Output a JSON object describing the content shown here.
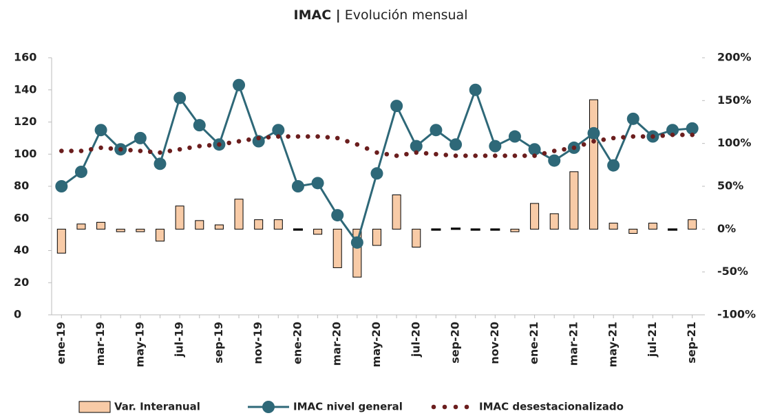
{
  "chart_data": {
    "type": "combo",
    "title_bold": "IMAC |",
    "title": "Evolución mensual",
    "categories": [
      "ene-19",
      null,
      "mar-19",
      null,
      "may-19",
      null,
      "jul-19",
      null,
      "sep-19",
      null,
      "nov-19",
      null,
      "ene-20",
      null,
      "mar-20",
      null,
      "may-20",
      null,
      "jul-20",
      null,
      "sep-20",
      null,
      "nov-20",
      null,
      "ene-21",
      null,
      "mar-21",
      null,
      "may-21",
      null,
      "jul-21",
      null,
      "sep-21"
    ],
    "series": [
      {
        "name": "Var. Interanual",
        "type": "bar",
        "axis": "y2",
        "color": "#f8cba7",
        "values": [
          -28,
          6,
          8,
          -3,
          -3,
          -14,
          27,
          10,
          5,
          35,
          11,
          11,
          -1,
          -6,
          -45,
          -56,
          -19,
          40,
          -21,
          -1,
          1,
          -1,
          -1,
          -3,
          30,
          18,
          67,
          151,
          7,
          -5,
          7,
          -1,
          11
        ]
      },
      {
        "name": "IMAC nivel general",
        "type": "line",
        "marker": true,
        "color": "#2e6878",
        "values": [
          80,
          89,
          115,
          103,
          110,
          94,
          135,
          118,
          106,
          143,
          108,
          115,
          80,
          82,
          62,
          45,
          88,
          130,
          105,
          115,
          106,
          140,
          105,
          111,
          103,
          96,
          104,
          113,
          93,
          122,
          111,
          115,
          116
        ]
      },
      {
        "name": "IMAC desestacionalizado",
        "type": "line",
        "dotted": true,
        "color": "#6b1e1e",
        "values": [
          102,
          102,
          104,
          103,
          102,
          101,
          103,
          105,
          106,
          108,
          110,
          111,
          111,
          111,
          110,
          106,
          101,
          99,
          101,
          100,
          99,
          99,
          99,
          99,
          99,
          102,
          104,
          108,
          110,
          111,
          111,
          112,
          112
        ]
      }
    ],
    "ylim": [
      0,
      160
    ],
    "yticks": [
      0,
      20,
      40,
      60,
      80,
      100,
      120,
      140,
      160
    ],
    "y2lim": [
      -100,
      200
    ],
    "y2ticks": [
      {
        "value": -100,
        "label": "-100%"
      },
      {
        "value": -50,
        "label": "-50%"
      },
      {
        "value": 0,
        "label": "0%"
      },
      {
        "value": 50,
        "label": "50%"
      },
      {
        "value": 100,
        "label": "100%"
      },
      {
        "value": 150,
        "label": "150%"
      },
      {
        "value": 200,
        "label": "200%"
      }
    ],
    "legend": "bottom"
  }
}
